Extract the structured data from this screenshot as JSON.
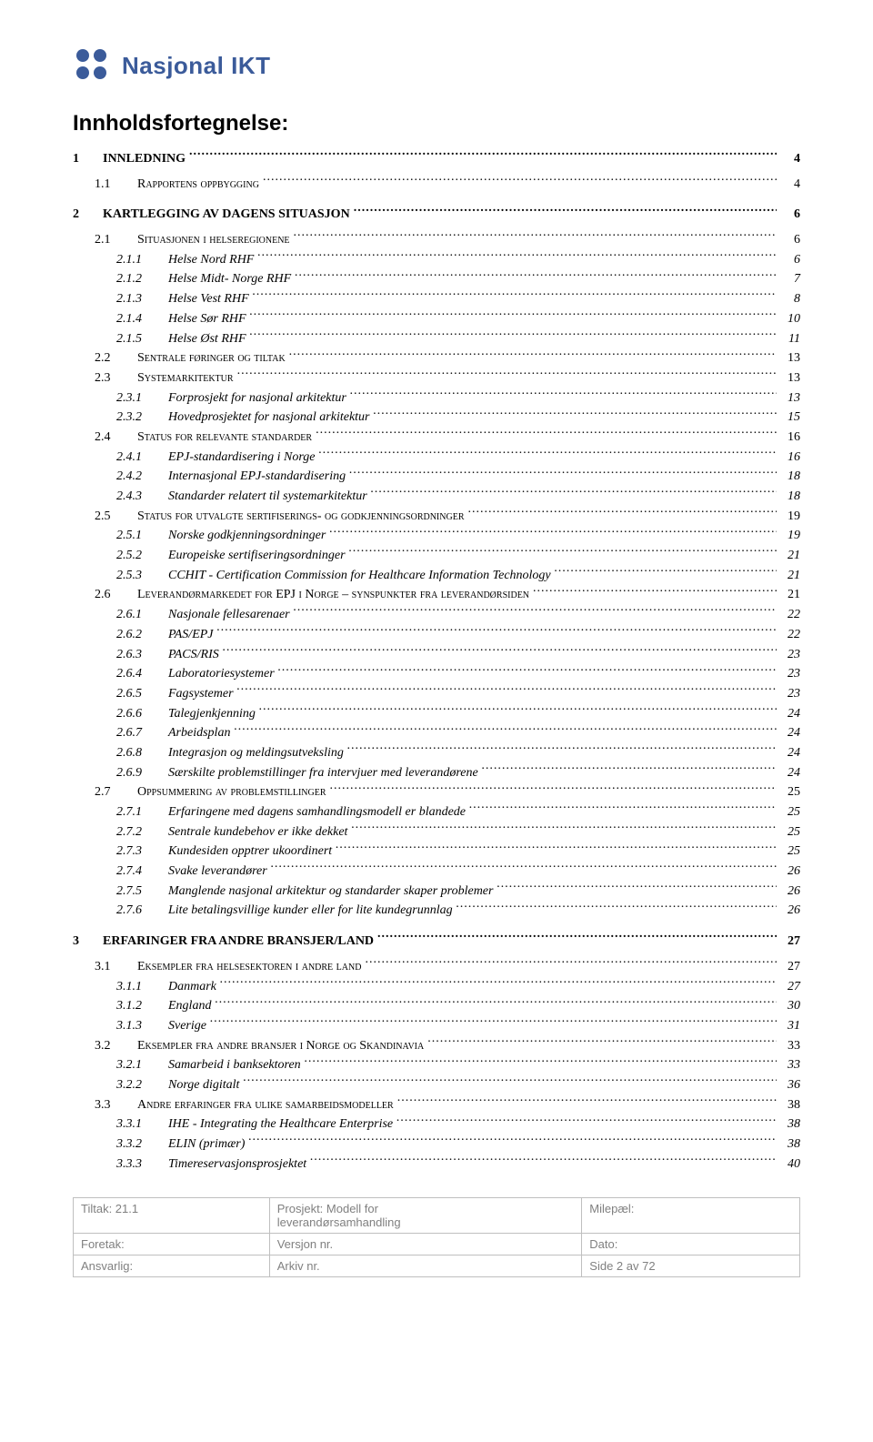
{
  "logo": {
    "text": "Nasjonal IKT",
    "dot_color": "#3b5b9a"
  },
  "title": "Innholdsfortegnelse:",
  "toc": [
    {
      "level": 0,
      "num": "1",
      "label": "INNLEDNING",
      "page": "4"
    },
    {
      "level": 1,
      "sc": true,
      "num": "1.1",
      "label": "Rapportens oppbygging",
      "page": "4"
    },
    {
      "level": 0,
      "num": "2",
      "label": "KARTLEGGING AV DAGENS SITUASJON",
      "page": "6"
    },
    {
      "level": 1,
      "sc": true,
      "num": "2.1",
      "label": "Situasjonen i helseregionene",
      "page": "6"
    },
    {
      "level": 2,
      "num": "2.1.1",
      "label": "Helse Nord RHF",
      "page": "6"
    },
    {
      "level": 2,
      "num": "2.1.2",
      "label": "Helse Midt- Norge RHF",
      "page": "7"
    },
    {
      "level": 2,
      "num": "2.1.3",
      "label": "Helse Vest RHF",
      "page": "8"
    },
    {
      "level": 2,
      "num": "2.1.4",
      "label": "Helse Sør RHF",
      "page": "10"
    },
    {
      "level": 2,
      "num": "2.1.5",
      "label": "Helse Øst RHF",
      "page": "11"
    },
    {
      "level": 1,
      "sc": true,
      "num": "2.2",
      "label": "Sentrale føringer og tiltak",
      "page": "13"
    },
    {
      "level": 1,
      "sc": true,
      "num": "2.3",
      "label": "Systemarkitektur",
      "page": "13"
    },
    {
      "level": 2,
      "num": "2.3.1",
      "label": "Forprosjekt for nasjonal arkitektur",
      "page": "13"
    },
    {
      "level": 2,
      "num": "2.3.2",
      "label": "Hovedprosjektet for nasjonal arkitektur",
      "page": "15"
    },
    {
      "level": 1,
      "sc": true,
      "num": "2.4",
      "label": "Status for relevante standarder",
      "page": "16"
    },
    {
      "level": 2,
      "num": "2.4.1",
      "label": "EPJ-standardisering i Norge",
      "page": "16"
    },
    {
      "level": 2,
      "num": "2.4.2",
      "label": "Internasjonal EPJ-standardisering",
      "page": "18"
    },
    {
      "level": 2,
      "num": "2.4.3",
      "label": "Standarder relatert til systemarkitektur",
      "page": "18"
    },
    {
      "level": 1,
      "sc": true,
      "num": "2.5",
      "label": "Status for utvalgte sertifiserings- og godkjenningsordninger",
      "page": "19"
    },
    {
      "level": 2,
      "num": "2.5.1",
      "label": "Norske godkjenningsordninger",
      "page": "19"
    },
    {
      "level": 2,
      "num": "2.5.2",
      "label": "Europeiske sertifiseringsordninger",
      "page": "21"
    },
    {
      "level": 2,
      "num": "2.5.3",
      "label": "CCHIT - Certification Commission for Healthcare Information Technology",
      "page": "21"
    },
    {
      "level": 1,
      "sc": true,
      "num": "2.6",
      "label": "Leverandørmarkedet for EPJ i Norge – synspunkter fra leverandørsiden",
      "page": "21"
    },
    {
      "level": 2,
      "num": "2.6.1",
      "label": "Nasjonale fellesarenaer",
      "page": "22"
    },
    {
      "level": 2,
      "num": "2.6.2",
      "label": "PAS/EPJ",
      "page": "22"
    },
    {
      "level": 2,
      "num": "2.6.3",
      "label": "PACS/RIS",
      "page": "23"
    },
    {
      "level": 2,
      "num": "2.6.4",
      "label": "Laboratoriesystemer",
      "page": "23"
    },
    {
      "level": 2,
      "num": "2.6.5",
      "label": "Fagsystemer",
      "page": "23"
    },
    {
      "level": 2,
      "num": "2.6.6",
      "label": "Talegjenkjenning",
      "page": "24"
    },
    {
      "level": 2,
      "num": "2.6.7",
      "label": "Arbeidsplan",
      "page": "24"
    },
    {
      "level": 2,
      "num": "2.6.8",
      "label": "Integrasjon og meldingsutveksling",
      "page": "24"
    },
    {
      "level": 2,
      "num": "2.6.9",
      "label": "Særskilte problemstillinger fra intervjuer med leverandørene",
      "page": "24"
    },
    {
      "level": 1,
      "sc": true,
      "num": "2.7",
      "label": "Oppsummering av problemstillinger",
      "page": "25"
    },
    {
      "level": 2,
      "num": "2.7.1",
      "label": "Erfaringene med dagens samhandlingsmodell er blandede",
      "page": "25"
    },
    {
      "level": 2,
      "num": "2.7.2",
      "label": "Sentrale kundebehov er ikke dekket",
      "page": "25"
    },
    {
      "level": 2,
      "num": "2.7.3",
      "label": "Kundesiden opptrer ukoordinert",
      "page": "25"
    },
    {
      "level": 2,
      "num": "2.7.4",
      "label": "Svake leverandører",
      "page": "26"
    },
    {
      "level": 2,
      "num": "2.7.5",
      "label": "Manglende nasjonal arkitektur og standarder skaper problemer",
      "page": "26"
    },
    {
      "level": 2,
      "num": "2.7.6",
      "label": "Lite betalingsvillige kunder eller for lite kundegrunnlag",
      "page": "26"
    },
    {
      "level": 0,
      "num": "3",
      "label": "ERFARINGER FRA ANDRE BRANSJER/LAND",
      "page": "27"
    },
    {
      "level": 1,
      "sc": true,
      "num": "3.1",
      "label": "Eksempler fra helsesektoren i andre land",
      "page": "27"
    },
    {
      "level": 2,
      "num": "3.1.1",
      "label": "Danmark",
      "page": "27"
    },
    {
      "level": 2,
      "num": "3.1.2",
      "label": "England",
      "page": "30"
    },
    {
      "level": 2,
      "num": "3.1.3",
      "label": "Sverige",
      "page": "31"
    },
    {
      "level": 1,
      "sc": true,
      "num": "3.2",
      "label": "Eksempler fra andre bransjer i Norge og Skandinavia",
      "page": "33"
    },
    {
      "level": 2,
      "num": "3.2.1",
      "label": "Samarbeid i banksektoren",
      "page": "33"
    },
    {
      "level": 2,
      "num": "3.2.2",
      "label": "Norge digitalt",
      "page": "36"
    },
    {
      "level": 1,
      "sc": true,
      "num": "3.3",
      "label": "Andre erfaringer fra ulike samarbeidsmodeller",
      "page": "38"
    },
    {
      "level": 2,
      "num": "3.3.1",
      "label": "IHE - Integrating the Healthcare Enterprise",
      "page": "38"
    },
    {
      "level": 2,
      "num": "3.3.2",
      "label": "ELIN (primær)",
      "page": "38"
    },
    {
      "level": 2,
      "num": "3.3.3",
      "label": "Timereservasjonsprosjektet",
      "page": "40"
    }
  ],
  "footer": {
    "r1c1": "Tiltak: 21.1",
    "r1c2a": "Prosjekt: Modell for",
    "r1c2b": "leverandørsamhandling",
    "r1c3": "Milepæl:",
    "r2c1": "Foretak:",
    "r2c2": "Versjon nr.",
    "r2c3": "Dato:",
    "r3c1": "Ansvarlig:",
    "r3c2": "Arkiv nr.",
    "r3c3": "Side 2 av 72"
  }
}
